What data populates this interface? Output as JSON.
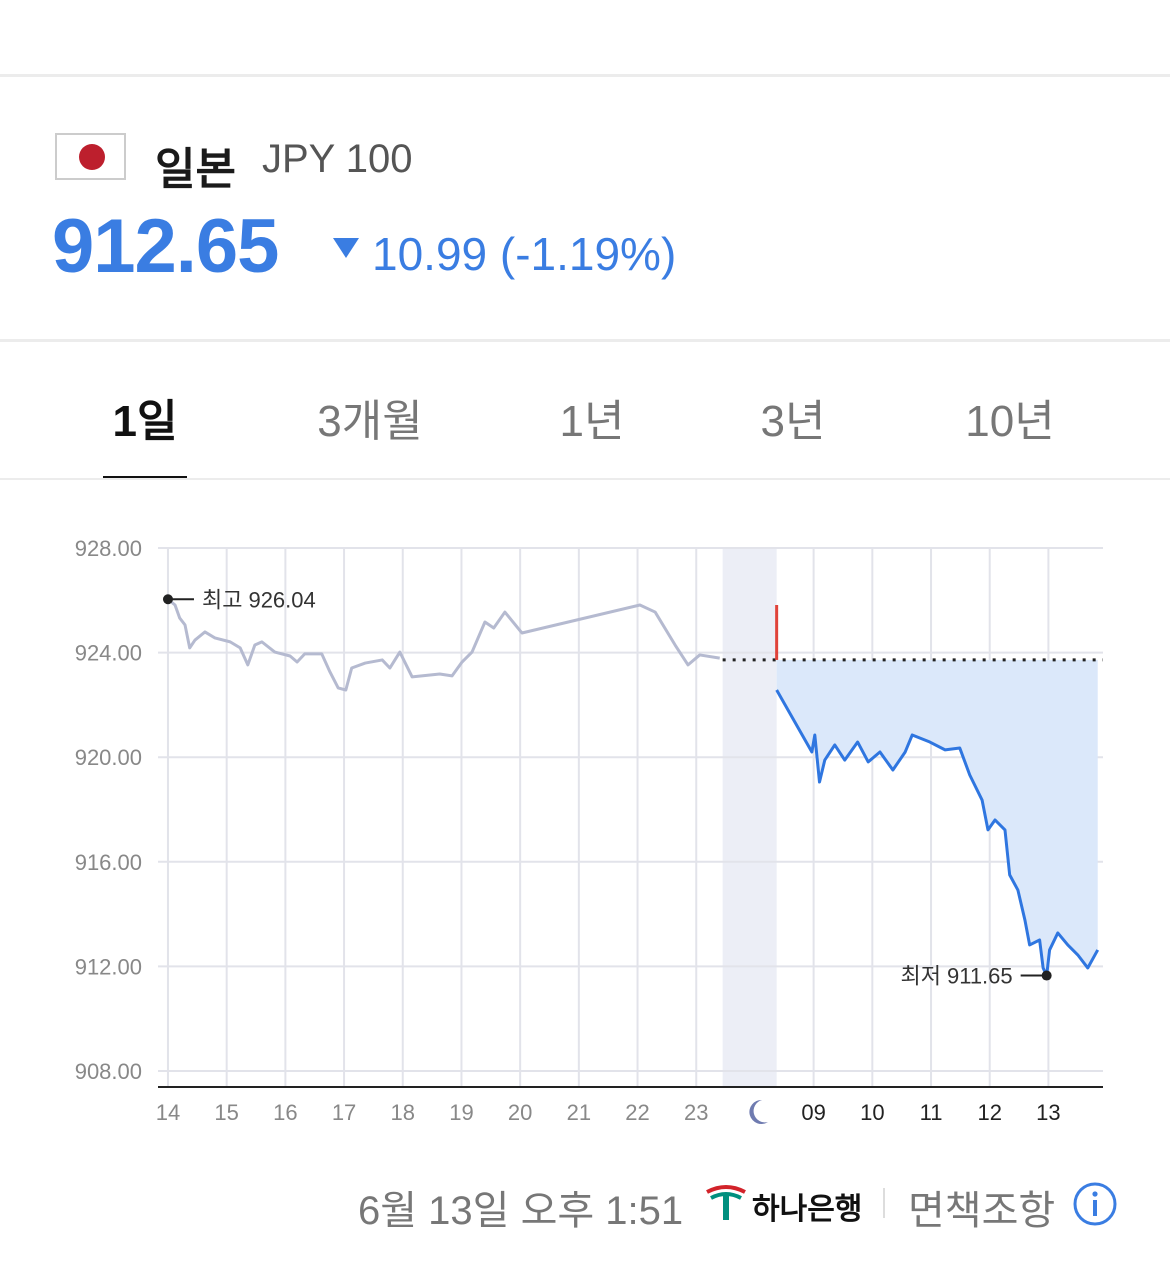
{
  "header": {
    "country": "일본",
    "code": "JPY 100",
    "price": "912.65",
    "change": "10.99 (-1.19%)"
  },
  "tabs": {
    "items": [
      "1일",
      "3개월",
      "1년",
      "3년",
      "10년"
    ],
    "active": 0
  },
  "chart_data": {
    "type": "line",
    "xlim": [
      -0.17,
      15.93
    ],
    "ylim": [
      908,
      928
    ],
    "yticks": [
      {
        "value": 908,
        "label": "908.00"
      },
      {
        "value": 912,
        "label": "912.00"
      },
      {
        "value": 916,
        "label": "916.00"
      },
      {
        "value": 920,
        "label": "920.00"
      },
      {
        "value": 924,
        "label": "924.00"
      },
      {
        "value": 928,
        "label": "928.00"
      }
    ],
    "xticks": [
      {
        "value": 0,
        "label": "14"
      },
      {
        "value": 1,
        "label": "15"
      },
      {
        "value": 2,
        "label": "16"
      },
      {
        "value": 3,
        "label": "17"
      },
      {
        "value": 4,
        "label": "18"
      },
      {
        "value": 5,
        "label": "19"
      },
      {
        "value": 6,
        "label": "20"
      },
      {
        "value": 7,
        "label": "21"
      },
      {
        "value": 8,
        "label": "22"
      },
      {
        "value": 9,
        "label": "23"
      },
      {
        "value": 11,
        "label": "09"
      },
      {
        "value": 12,
        "label": "10"
      },
      {
        "value": 13,
        "label": "11"
      },
      {
        "value": 14,
        "label": "12"
      },
      {
        "value": 15,
        "label": "13"
      }
    ],
    "grid": true,
    "night_band": [
      9.45,
      10.37
    ],
    "reference": {
      "value": 923.72,
      "color": "#222"
    },
    "series": [
      {
        "color": "#b5bad0",
        "x": [
          0,
          0.12,
          0.2,
          0.29,
          0.37,
          0.46,
          0.63,
          0.8,
          1.06,
          1.23,
          1.36,
          1.48,
          1.6,
          1.82,
          2.08,
          2.2,
          2.33,
          2.62,
          2.76,
          2.9,
          3.03,
          3.13,
          3.36,
          3.65,
          3.78,
          3.95,
          4.16,
          4.63,
          4.84,
          5.01,
          5.18,
          5.4,
          5.55,
          5.74,
          6.03,
          8.04,
          8.3,
          8.64,
          8.86,
          9.06,
          9.4
        ],
        "values": [
          926.04,
          925.82,
          925.32,
          925.06,
          924.18,
          924.48,
          924.79,
          924.56,
          924.41,
          924.18,
          923.53,
          924.29,
          924.41,
          924.02,
          923.87,
          923.64,
          923.95,
          923.95,
          923.26,
          922.65,
          922.57,
          923.41,
          923.6,
          923.72,
          923.41,
          924.02,
          923.07,
          923.18,
          923.11,
          923.64,
          924.02,
          925.17,
          924.94,
          925.55,
          924.75,
          925.82,
          925.55,
          924.29,
          923.53,
          923.91,
          923.79
        ]
      },
      {
        "color": "#2f76e0",
        "fill": "#dbe8fa",
        "x": [
          10.37,
          10.97,
          11.02,
          11.1,
          11.19,
          11.36,
          11.53,
          11.75,
          11.93,
          12.13,
          12.35,
          12.56,
          12.68,
          12.98,
          13.24,
          13.49,
          13.66,
          13.87,
          13.97,
          14.09,
          14.26,
          14.34,
          14.48,
          14.6,
          14.68,
          14.85,
          14.91,
          14.97,
          15.02,
          15.16,
          15.33,
          15.5,
          15.67,
          15.84
        ],
        "values": [
          922.57,
          920.2,
          920.85,
          919.05,
          919.89,
          920.47,
          919.89,
          920.58,
          919.82,
          920.2,
          919.51,
          920.2,
          920.85,
          920.58,
          920.28,
          920.35,
          919.32,
          918.36,
          917.22,
          917.6,
          917.22,
          915.5,
          914.92,
          913.77,
          912.82,
          913.01,
          911.94,
          911.65,
          912.63,
          913.28,
          912.82,
          912.44,
          911.94,
          912.63
        ]
      },
      {
        "color": "#e0433a",
        "x": [
          10.37,
          10.37
        ],
        "values": [
          923.72,
          925.82
        ]
      }
    ],
    "annotations": [
      {
        "label": "최고",
        "value": 926.04,
        "x": 0,
        "side": "right"
      },
      {
        "label": "최저",
        "value": 911.65,
        "x": 14.97,
        "side": "left"
      }
    ]
  },
  "footer": {
    "timestamp": "6월 13일 오후 1:51",
    "bank": "하나은행",
    "disclaimer": "면책조항"
  }
}
